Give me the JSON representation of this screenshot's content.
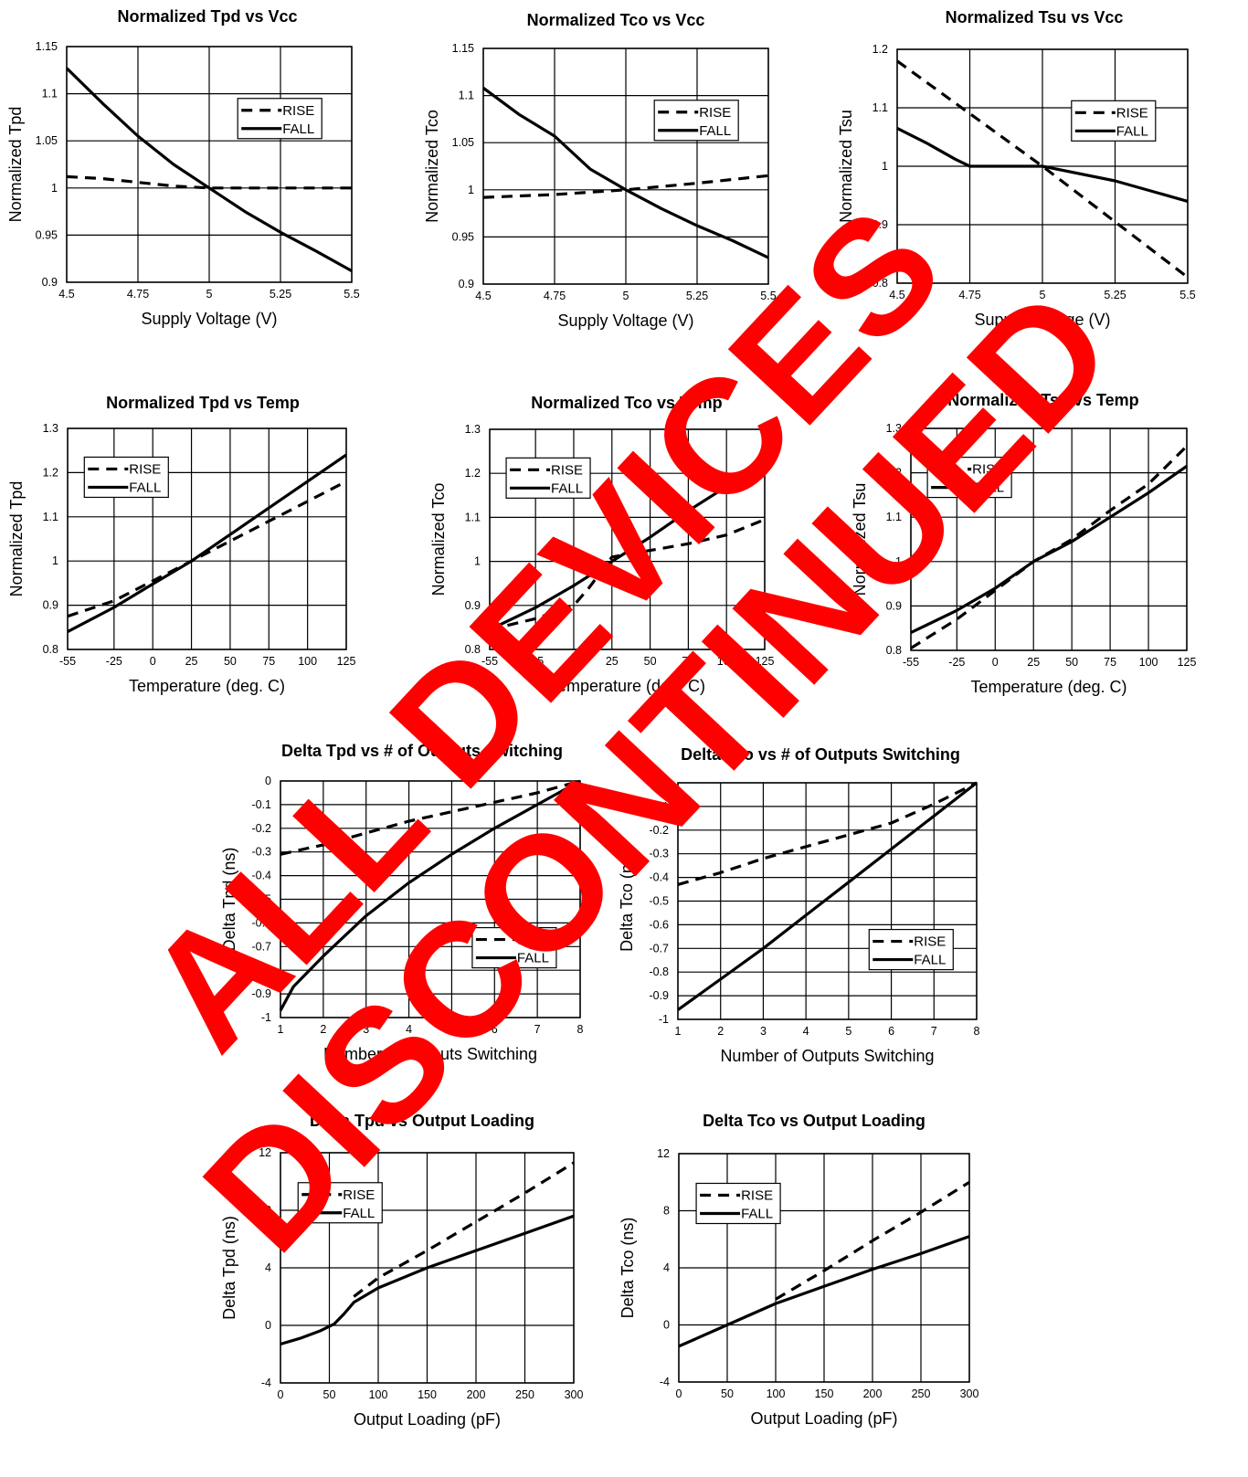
{
  "watermark": {
    "line1": "ALL DEVICES",
    "line2": "DISCONTINUED",
    "color": "#ff0000"
  },
  "chart_data": [
    {
      "id": "tpd-vcc",
      "type": "line",
      "title": "Normalized Tpd vs Vcc",
      "xlabel": "Supply Voltage (V)",
      "ylabel": "Normalized Tpd",
      "xlim": [
        4.5,
        5.5
      ],
      "ylim": [
        0.9,
        1.15
      ],
      "xticks": [
        4.5,
        4.75,
        5,
        5.25,
        5.5
      ],
      "xtick_labels": [
        "4.5",
        "4.75",
        "5",
        "5.25",
        "5.5"
      ],
      "yticks": [
        0.9,
        0.95,
        1,
        1.05,
        1.1,
        1.15
      ],
      "ytick_labels": [
        "0.9",
        "0.95",
        "1",
        "1.05",
        "1.1",
        "1.15"
      ],
      "grid": true,
      "legend_position": "top-right",
      "series": [
        {
          "name": "RISE",
          "style": "dashed",
          "x": [
            4.5,
            4.625,
            4.75,
            4.875,
            5,
            5.25,
            5.5
          ],
          "y": [
            1.012,
            1.01,
            1.006,
            1.002,
            1.0,
            1.0,
            1.0
          ]
        },
        {
          "name": "FALL",
          "style": "solid",
          "x": [
            4.5,
            4.625,
            4.75,
            4.875,
            5,
            5.125,
            5.25,
            5.375,
            5.5
          ],
          "y": [
            1.127,
            1.09,
            1.055,
            1.025,
            1.0,
            0.975,
            0.953,
            0.933,
            0.912
          ]
        }
      ]
    },
    {
      "id": "tco-vcc",
      "type": "line",
      "title": "Normalized Tco vs Vcc",
      "xlabel": "Supply Voltage (V)",
      "ylabel": "Normalized Tco",
      "xlim": [
        4.5,
        5.5
      ],
      "ylim": [
        0.9,
        1.15
      ],
      "xticks": [
        4.5,
        4.75,
        5,
        5.25,
        5.5
      ],
      "xtick_labels": [
        "4.5",
        "4.75",
        "5",
        "5.25",
        "5.5"
      ],
      "yticks": [
        0.9,
        0.95,
        1,
        1.05,
        1.1,
        1.15
      ],
      "ytick_labels": [
        "0.9",
        "0.95",
        "1",
        "1.05",
        "1.1",
        "1.15"
      ],
      "grid": true,
      "legend_position": "top-right",
      "series": [
        {
          "name": "RISE",
          "style": "dashed",
          "x": [
            4.5,
            4.75,
            5,
            5.25,
            5.5
          ],
          "y": [
            0.992,
            0.995,
            1.0,
            1.007,
            1.015
          ]
        },
        {
          "name": "FALL",
          "style": "solid",
          "x": [
            4.5,
            4.625,
            4.75,
            4.875,
            5,
            5.125,
            5.25,
            5.375,
            5.5
          ],
          "y": [
            1.108,
            1.08,
            1.057,
            1.022,
            1.0,
            0.98,
            0.962,
            0.946,
            0.928
          ]
        }
      ]
    },
    {
      "id": "tsu-vcc",
      "type": "line",
      "title": "Normalized Tsu vs Vcc",
      "xlabel": "Supply Voltage (V)",
      "ylabel": "Normalized Tsu",
      "xlim": [
        4.5,
        5.5
      ],
      "ylim": [
        0.8,
        1.2
      ],
      "xticks": [
        4.5,
        4.75,
        5,
        5.25,
        5.5
      ],
      "xtick_labels": [
        "4.5",
        "4.75",
        "5",
        "5.25",
        "5.5"
      ],
      "yticks": [
        0.8,
        0.9,
        1,
        1.1,
        1.2
      ],
      "ytick_labels": [
        "0.8",
        "0.9",
        "1",
        "1.1",
        "1.2"
      ],
      "grid": true,
      "legend_position": "top-right",
      "series": [
        {
          "name": "RISE",
          "style": "dashed",
          "x": [
            4.5,
            4.75,
            5,
            5.25,
            5.5
          ],
          "y": [
            1.18,
            1.09,
            1.0,
            0.905,
            0.81
          ]
        },
        {
          "name": "FALL",
          "style": "solid",
          "x": [
            4.5,
            4.6,
            4.7,
            4.75,
            4.875,
            5,
            5.25,
            5.5
          ],
          "y": [
            1.065,
            1.04,
            1.012,
            1.0,
            1.0,
            1.0,
            0.975,
            0.94
          ]
        }
      ]
    },
    {
      "id": "tpd-temp",
      "type": "line",
      "title": "Normalized Tpd vs Temp",
      "xlabel": "Temperature (deg. C)",
      "ylabel": "Normalized Tpd",
      "xlim": [
        -55,
        125
      ],
      "ylim": [
        0.8,
        1.3
      ],
      "xticks": [
        -55,
        -25,
        0,
        25,
        50,
        75,
        100,
        125
      ],
      "xtick_labels": [
        "-55",
        "-25",
        "0",
        "25",
        "50",
        "75",
        "100",
        "125"
      ],
      "yticks": [
        0.8,
        0.9,
        1,
        1.1,
        1.2,
        1.3
      ],
      "ytick_labels": [
        "0.8",
        "0.9",
        "1",
        "1.1",
        "1.2",
        "1.3"
      ],
      "grid": true,
      "legend_position": "top-left",
      "series": [
        {
          "name": "RISE",
          "style": "dashed",
          "x": [
            -55,
            -25,
            0,
            25,
            50,
            75,
            100,
            125
          ],
          "y": [
            0.875,
            0.91,
            0.955,
            1.0,
            1.045,
            1.09,
            1.135,
            1.18
          ]
        },
        {
          "name": "FALL",
          "style": "solid",
          "x": [
            -55,
            -25,
            0,
            25,
            50,
            75,
            100,
            125
          ],
          "y": [
            0.84,
            0.895,
            0.948,
            1.0,
            1.06,
            1.12,
            1.18,
            1.24
          ]
        }
      ]
    },
    {
      "id": "tco-temp",
      "type": "line",
      "title": "Normalized Tco vs Temp",
      "xlabel": "Temperature (deg. C)",
      "ylabel": "Normalized Tco",
      "xlim": [
        -55,
        125
      ],
      "ylim": [
        0.8,
        1.3
      ],
      "xticks": [
        -55,
        -25,
        0,
        25,
        50,
        75,
        100,
        125
      ],
      "xtick_labels": [
        "-55",
        "-25",
        "0",
        "25",
        "50",
        "75",
        "100",
        "125"
      ],
      "yticks": [
        0.8,
        0.9,
        1,
        1.1,
        1.2,
        1.3
      ],
      "ytick_labels": [
        "0.8",
        "0.9",
        "1",
        "1.1",
        "1.2",
        "1.3"
      ],
      "grid": true,
      "legend_position": "top-left",
      "series": [
        {
          "name": "RISE",
          "style": "dashed",
          "x": [
            -55,
            -25,
            0,
            10,
            25,
            50,
            75,
            100,
            125
          ],
          "y": [
            0.845,
            0.87,
            0.9,
            0.94,
            1.01,
            1.025,
            1.04,
            1.06,
            1.095
          ]
        },
        {
          "name": "FALL",
          "style": "solid",
          "x": [
            -55,
            -25,
            0,
            25,
            50,
            75,
            100,
            125
          ],
          "y": [
            0.845,
            0.895,
            0.945,
            1.0,
            1.055,
            1.115,
            1.17,
            1.235
          ]
        }
      ]
    },
    {
      "id": "tsu-temp",
      "type": "line",
      "title": "Normalized Tsu vs Temp",
      "xlabel": "Temperature (deg. C)",
      "ylabel": "Normalized Tsu",
      "xlim": [
        -55,
        125
      ],
      "ylim": [
        0.8,
        1.3
      ],
      "xticks": [
        -55,
        -25,
        0,
        25,
        50,
        75,
        100,
        125
      ],
      "xtick_labels": [
        "-55",
        "-25",
        "0",
        "25",
        "50",
        "75",
        "100",
        "125"
      ],
      "yticks": [
        0.8,
        0.9,
        1,
        1.1,
        1.2,
        1.3
      ],
      "ytick_labels": [
        "0.8",
        "0.9",
        "1",
        "1.1",
        "1.2",
        "1.3"
      ],
      "grid": true,
      "legend_position": "top-left",
      "series": [
        {
          "name": "RISE",
          "style": "dashed",
          "x": [
            -55,
            -25,
            0,
            25,
            50,
            75,
            100,
            125
          ],
          "y": [
            0.805,
            0.87,
            0.935,
            1.0,
            1.05,
            1.115,
            1.175,
            1.26
          ]
        },
        {
          "name": "FALL",
          "style": "solid",
          "x": [
            -55,
            -25,
            0,
            25,
            50,
            75,
            100,
            125
          ],
          "y": [
            0.84,
            0.89,
            0.94,
            1.0,
            1.045,
            1.1,
            1.155,
            1.215
          ]
        }
      ]
    },
    {
      "id": "tpd-outputs",
      "type": "line",
      "title": "Delta Tpd vs # of Outputs Switching",
      "xlabel": "Number of Outputs Switching",
      "ylabel": "Delta Tpd (ns)",
      "xlim": [
        1,
        8
      ],
      "ylim": [
        -1,
        0
      ],
      "xticks": [
        1,
        2,
        3,
        4,
        5,
        6,
        7,
        8
      ],
      "xtick_labels": [
        "1",
        "2",
        "3",
        "4",
        "5",
        "6",
        "7",
        "8"
      ],
      "yticks": [
        -1,
        -0.9,
        -0.8,
        -0.7,
        -0.6,
        -0.5,
        -0.4,
        -0.3,
        -0.2,
        -0.1,
        0
      ],
      "ytick_labels": [
        "-1",
        "-0.9",
        "-0.8",
        "-0.7",
        "-0.6",
        "-0.5",
        "-0.4",
        "-0.3",
        "-0.2",
        "-0.1",
        "0"
      ],
      "grid": true,
      "legend_position": "bottom-right",
      "series": [
        {
          "name": "RISE",
          "style": "dashed",
          "x": [
            1,
            2,
            3,
            4,
            5,
            6,
            7,
            8
          ],
          "y": [
            -0.31,
            -0.27,
            -0.22,
            -0.17,
            -0.13,
            -0.09,
            -0.05,
            0
          ]
        },
        {
          "name": "FALL",
          "style": "solid",
          "x": [
            1,
            1.3,
            2,
            3,
            4,
            5,
            6,
            7,
            8
          ],
          "y": [
            -0.97,
            -0.87,
            -0.74,
            -0.57,
            -0.43,
            -0.31,
            -0.2,
            -0.1,
            0
          ]
        }
      ]
    },
    {
      "id": "tco-outputs",
      "type": "line",
      "title": "Delta Tco vs # of Outputs Switching",
      "xlabel": "Number of Outputs Switching",
      "ylabel": "Delta Tco (ns)",
      "xlim": [
        1,
        8
      ],
      "ylim": [
        -1,
        0
      ],
      "xticks": [
        1,
        2,
        3,
        4,
        5,
        6,
        7,
        8
      ],
      "xtick_labels": [
        "1",
        "2",
        "3",
        "4",
        "5",
        "6",
        "7",
        "8"
      ],
      "yticks": [
        -1,
        -0.9,
        -0.8,
        -0.7,
        -0.6,
        -0.5,
        -0.4,
        -0.3,
        -0.2,
        -0.1,
        0
      ],
      "ytick_labels": [
        "-1",
        "-0.9",
        "-0.8",
        "-0.7",
        "-0.6",
        "-0.5",
        "-0.4",
        "-0.3",
        "-0.2",
        "-0.1",
        "0"
      ],
      "grid": true,
      "legend_position": "bottom-right",
      "series": [
        {
          "name": "RISE",
          "style": "dashed",
          "x": [
            1,
            2,
            3,
            4,
            5,
            6,
            7,
            8
          ],
          "y": [
            -0.43,
            -0.38,
            -0.32,
            -0.27,
            -0.22,
            -0.17,
            -0.09,
            0
          ]
        },
        {
          "name": "FALL",
          "style": "solid",
          "x": [
            1,
            2,
            3,
            4,
            5,
            6,
            7,
            8
          ],
          "y": [
            -0.96,
            -0.83,
            -0.7,
            -0.56,
            -0.42,
            -0.28,
            -0.14,
            0
          ]
        }
      ]
    },
    {
      "id": "tpd-load",
      "type": "line",
      "title": "Delta Tpd vs Output Loading",
      "xlabel": "Output Loading (pF)",
      "ylabel": "Delta Tpd (ns)",
      "xlim": [
        0,
        300
      ],
      "ylim": [
        -4,
        12
      ],
      "xticks": [
        0,
        50,
        100,
        150,
        200,
        250,
        300
      ],
      "xtick_labels": [
        "0",
        "50",
        "100",
        "150",
        "200",
        "250",
        "300"
      ],
      "yticks": [
        -4,
        0,
        4,
        8,
        12
      ],
      "ytick_labels": [
        "-4",
        "0",
        "4",
        "8",
        "12"
      ],
      "grid": true,
      "legend_position": "top-left",
      "series": [
        {
          "name": "RISE",
          "style": "dashed",
          "x": [
            75,
            100,
            150,
            200,
            250,
            300
          ],
          "y": [
            2.0,
            3.3,
            5.2,
            7.2,
            9.2,
            11.3
          ]
        },
        {
          "name": "FALL",
          "style": "solid",
          "x": [
            0,
            20,
            40,
            55,
            65,
            75,
            100,
            150,
            200,
            250,
            300
          ],
          "y": [
            -1.3,
            -0.9,
            -0.4,
            0.1,
            0.8,
            1.6,
            2.6,
            4.0,
            5.2,
            6.4,
            7.6
          ]
        }
      ]
    },
    {
      "id": "tco-load",
      "type": "line",
      "title": "Delta Tco vs Output Loading",
      "xlabel": "Output Loading (pF)",
      "ylabel": "Delta Tco (ns)",
      "xlim": [
        0,
        300
      ],
      "ylim": [
        -4,
        12
      ],
      "xticks": [
        0,
        50,
        100,
        150,
        200,
        250,
        300
      ],
      "xtick_labels": [
        "0",
        "50",
        "100",
        "150",
        "200",
        "250",
        "300"
      ],
      "yticks": [
        -4,
        0,
        4,
        8,
        12
      ],
      "ytick_labels": [
        "-4",
        "0",
        "4",
        "8",
        "12"
      ],
      "grid": true,
      "legend_position": "top-left",
      "series": [
        {
          "name": "RISE",
          "style": "dashed",
          "x": [
            100,
            150,
            200,
            250,
            300
          ],
          "y": [
            1.8,
            3.8,
            5.9,
            7.9,
            10.0
          ]
        },
        {
          "name": "FALL",
          "style": "solid",
          "x": [
            0,
            50,
            100,
            150,
            200,
            250,
            300
          ],
          "y": [
            -1.5,
            0.0,
            1.5,
            2.7,
            3.9,
            5.0,
            6.2
          ]
        }
      ]
    }
  ]
}
